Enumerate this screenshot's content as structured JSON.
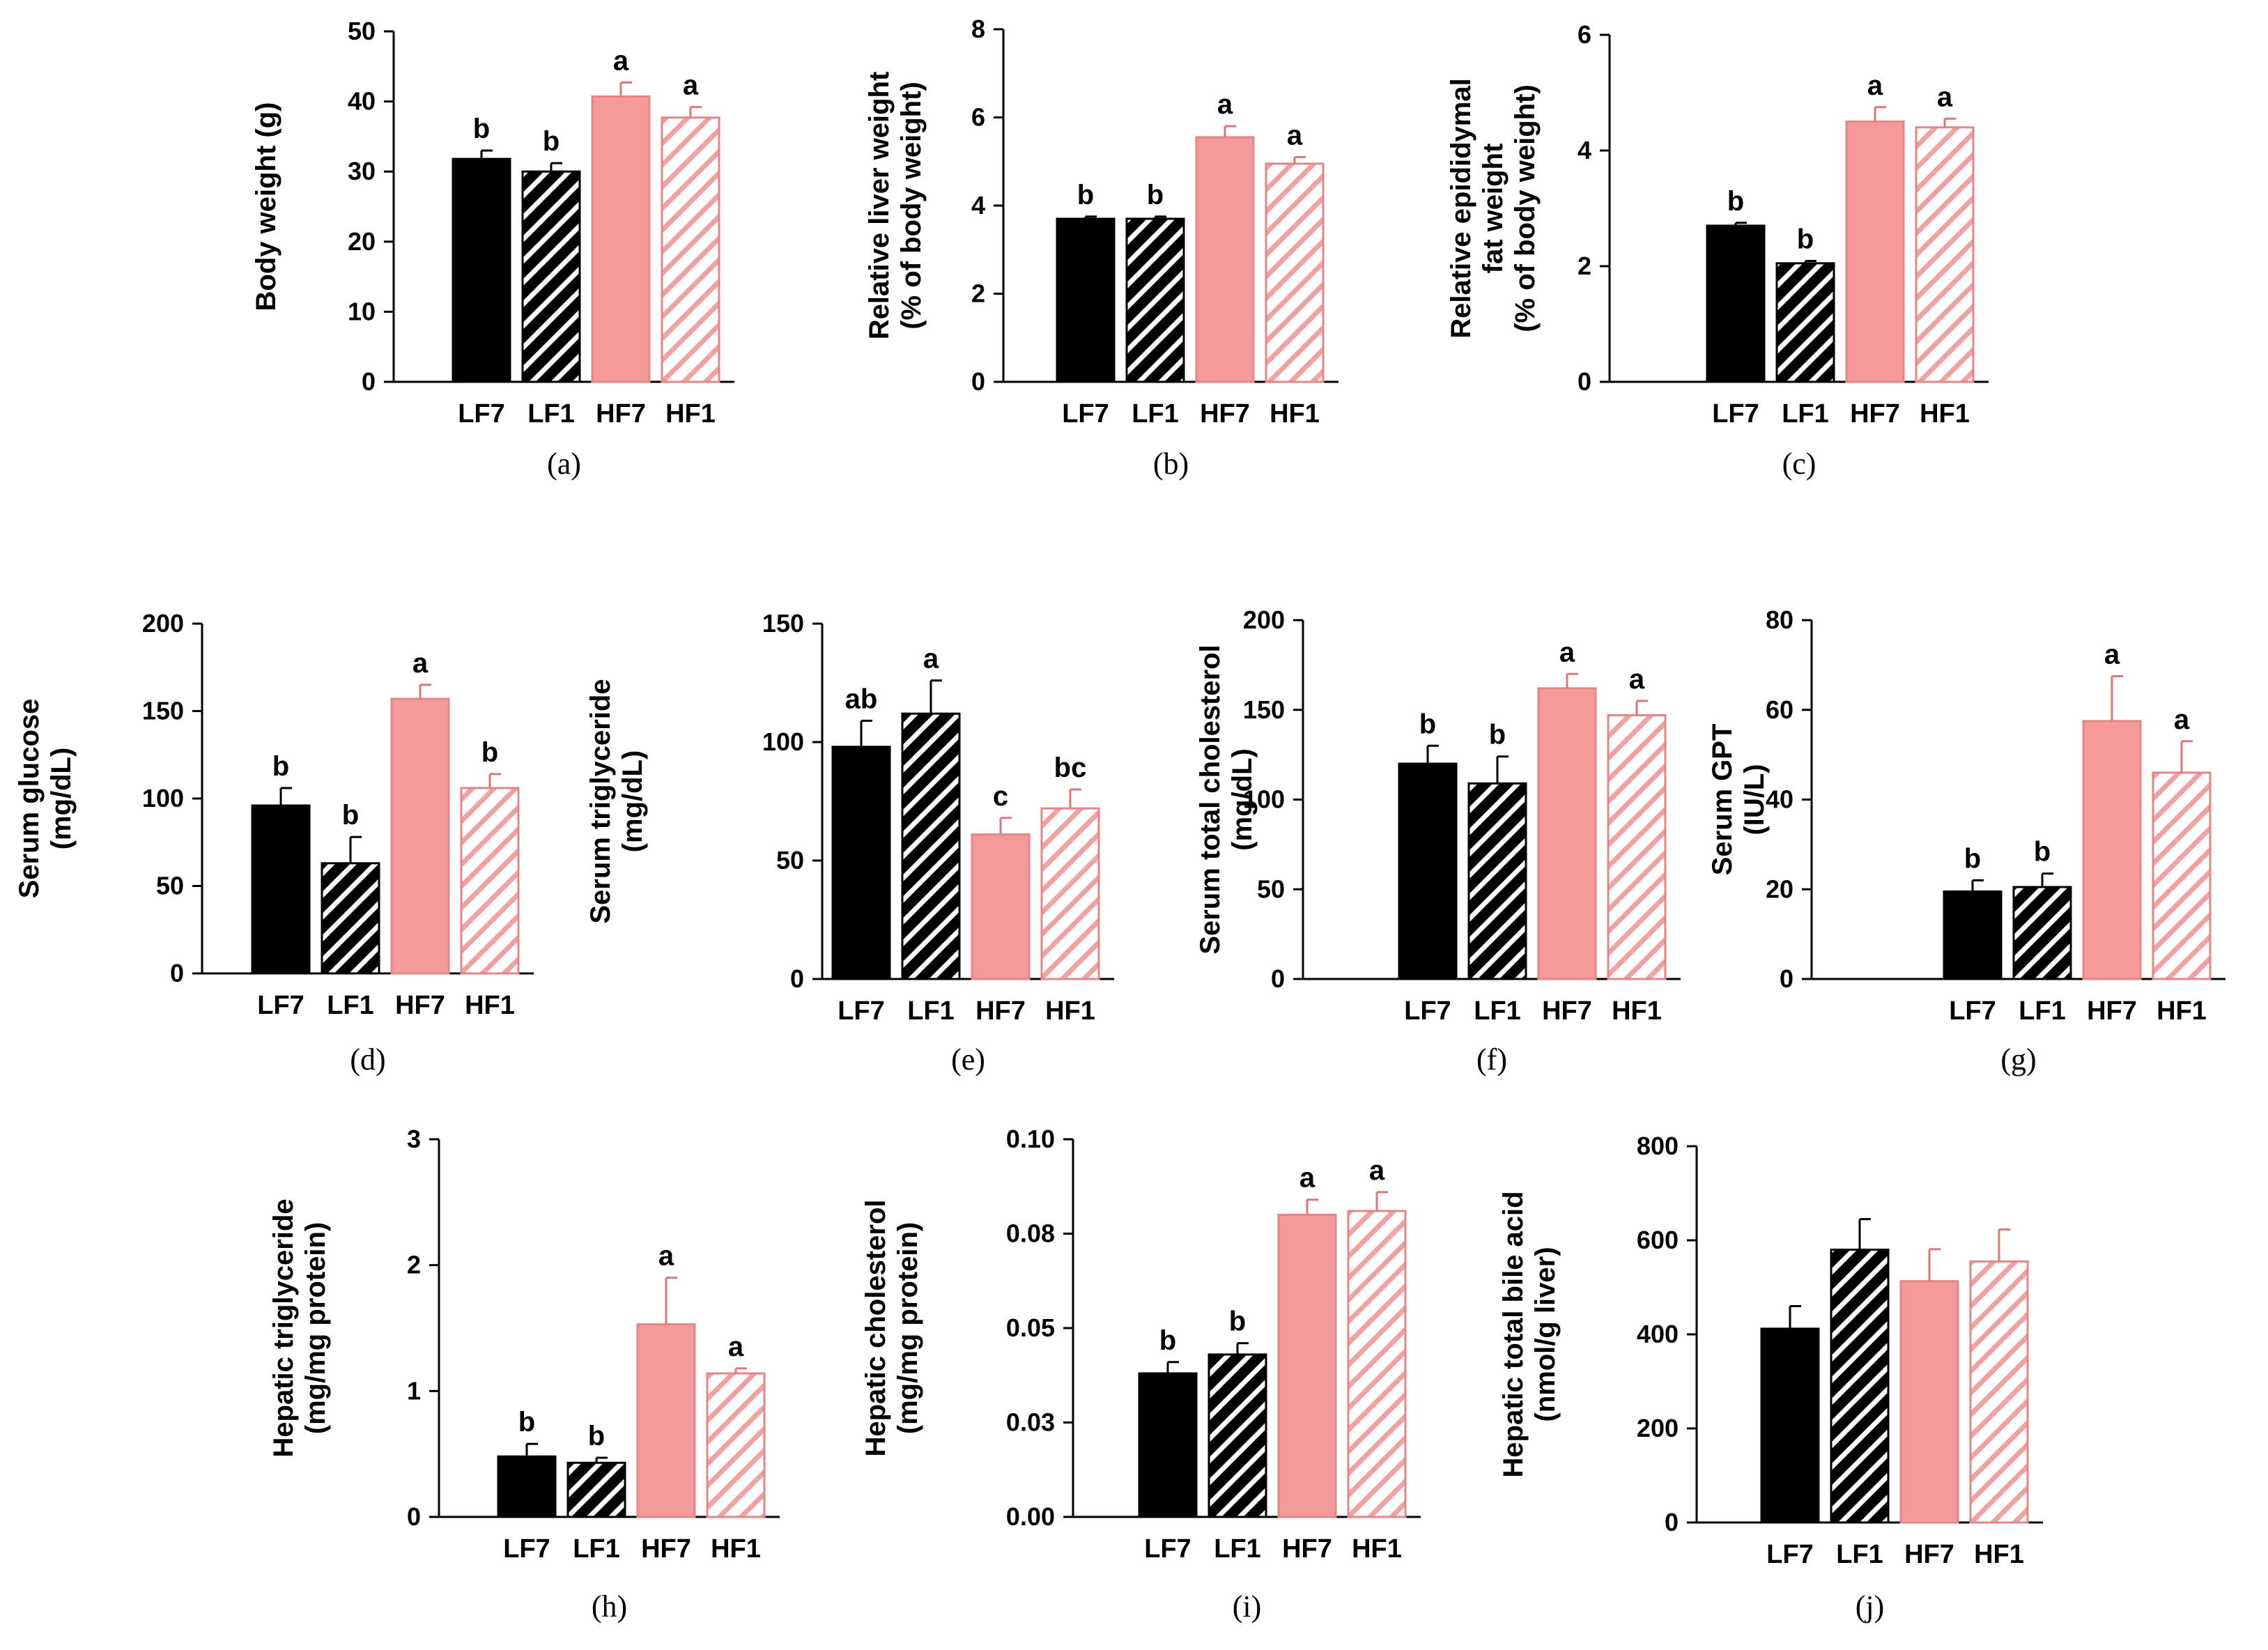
{
  "figure": {
    "bar_styles": [
      {
        "fill": "#000000",
        "pattern": "none"
      },
      {
        "fill": "#000000",
        "pattern": "hatch-white"
      },
      {
        "fill": "#f59a9a",
        "pattern": "none"
      },
      {
        "fill": "#f59a9a",
        "pattern": "hatch-pink"
      }
    ],
    "colors": {
      "low_fat": "#000000",
      "high_fat": "#f59a9a",
      "hatch_pink": "#f3a0a0"
    }
  },
  "chart_data": [
    {
      "id": "a",
      "panel_label": "(a)",
      "type": "bar",
      "categories": [
        "LF7",
        "LF1",
        "HF7",
        "HF1"
      ],
      "values": [
        31.8,
        30.0,
        40.7,
        37.7
      ],
      "errors": [
        1.2,
        1.2,
        2.0,
        1.5
      ],
      "significance": [
        "b",
        "b",
        "a",
        "a"
      ],
      "ylabel": [
        "Body weight (g)"
      ],
      "ylim": [
        0,
        50
      ],
      "yticks": [
        "0",
        "10",
        "20",
        "30",
        "40",
        "50"
      ]
    },
    {
      "id": "b",
      "panel_label": "(b)",
      "type": "bar",
      "categories": [
        "LF7",
        "LF1",
        "HF7",
        "HF1"
      ],
      "values": [
        3.7,
        3.7,
        5.55,
        4.95
      ],
      "errors": [
        0.05,
        0.05,
        0.25,
        0.15
      ],
      "significance": [
        "b",
        "b",
        "a",
        "a"
      ],
      "ylabel": [
        "Relative liver weight",
        "(% of body weight)"
      ],
      "ylim": [
        0,
        8
      ],
      "yticks": [
        "0",
        "2",
        "4",
        "6",
        "8"
      ]
    },
    {
      "id": "c",
      "panel_label": "(c)",
      "type": "bar",
      "categories": [
        "LF7",
        "LF1",
        "HF7",
        "HF1"
      ],
      "values": [
        2.7,
        2.05,
        4.5,
        4.4
      ],
      "errors": [
        0.05,
        0.04,
        0.25,
        0.15
      ],
      "significance": [
        "b",
        "b",
        "a",
        "a"
      ],
      "ylabel": [
        "Relative epididymal",
        "fat weight",
        "(% of body weight)"
      ],
      "ylim": [
        0,
        6
      ],
      "yticks": [
        "0",
        "2",
        "4",
        "6"
      ]
    },
    {
      "id": "d",
      "panel_label": "(d)",
      "type": "bar",
      "categories": [
        "LF7",
        "LF1",
        "HF7",
        "HF1"
      ],
      "values": [
        96,
        63,
        157,
        106
      ],
      "errors": [
        10,
        15,
        8,
        8
      ],
      "significance": [
        "b",
        "b",
        "a",
        "b"
      ],
      "ylabel": [
        "Serum glucose",
        "(mg/dL)"
      ],
      "ylim": [
        0,
        200
      ],
      "yticks": [
        "0",
        "50",
        "100",
        "150",
        "200"
      ]
    },
    {
      "id": "e",
      "panel_label": "(e)",
      "type": "bar",
      "categories": [
        "LF7",
        "LF1",
        "HF7",
        "HF1"
      ],
      "values": [
        98,
        112,
        61,
        72
      ],
      "errors": [
        11,
        14,
        7,
        8
      ],
      "significance": [
        "ab",
        "a",
        "c",
        "bc"
      ],
      "ylabel": [
        "Serum triglyceride",
        "(mg/dL)"
      ],
      "ylim": [
        0,
        150
      ],
      "yticks": [
        "0",
        "50",
        "100",
        "150"
      ]
    },
    {
      "id": "f",
      "panel_label": "(f)",
      "type": "bar",
      "categories": [
        "LF7",
        "LF1",
        "HF7",
        "HF1"
      ],
      "values": [
        120,
        109,
        162,
        147
      ],
      "errors": [
        10,
        15,
        8,
        8
      ],
      "significance": [
        "b",
        "b",
        "a",
        "a"
      ],
      "ylabel": [
        "Serum total cholesterol",
        "(mg/dL)"
      ],
      "ylim": [
        0,
        200
      ],
      "yticks": [
        "0",
        "50",
        "100",
        "150",
        "200"
      ]
    },
    {
      "id": "g",
      "panel_label": "(g)",
      "type": "bar",
      "categories": [
        "LF7",
        "LF1",
        "HF7",
        "HF1"
      ],
      "values": [
        19.5,
        20.5,
        57.5,
        46
      ],
      "errors": [
        2.5,
        3,
        10,
        7
      ],
      "significance": [
        "b",
        "b",
        "a",
        "a"
      ],
      "ylabel": [
        "Serum GPT",
        "(IU/L)"
      ],
      "ylim": [
        0,
        80
      ],
      "yticks": [
        "0",
        "20",
        "40",
        "60",
        "80"
      ]
    },
    {
      "id": "h",
      "panel_label": "(h)",
      "type": "bar",
      "categories": [
        "LF7",
        "LF1",
        "HF7",
        "HF1"
      ],
      "values": [
        0.48,
        0.43,
        1.53,
        1.14
      ],
      "errors": [
        0.1,
        0.04,
        0.37,
        0.04
      ],
      "significance": [
        "b",
        "b",
        "a",
        "a"
      ],
      "ylabel": [
        "Hepatic triglyceride",
        "(mg/mg protein)"
      ],
      "ylim": [
        0,
        3
      ],
      "yticks": [
        "0",
        "1",
        "2",
        "3"
      ]
    },
    {
      "id": "i",
      "panel_label": "(i)",
      "type": "bar",
      "categories": [
        "LF7",
        "LF1",
        "HF7",
        "HF1"
      ],
      "values": [
        0.038,
        0.043,
        0.08,
        0.081
      ],
      "errors": [
        0.003,
        0.003,
        0.004,
        0.005
      ],
      "significance": [
        "b",
        "b",
        "a",
        "a"
      ],
      "ylabel": [
        "Hepatic cholesterol",
        "(mg/mg protein)"
      ],
      "ylim": [
        0,
        0.1
      ],
      "yticks": [
        "0.00",
        "0.03",
        "0.05",
        "0.08",
        "0.10"
      ]
    },
    {
      "id": "j",
      "panel_label": "(j)",
      "type": "bar",
      "categories": [
        "LF7",
        "LF1",
        "HF7",
        "HF1"
      ],
      "values": [
        412,
        580,
        513,
        555
      ],
      "errors": [
        48,
        65,
        68,
        68
      ],
      "significance": [
        "",
        "",
        "",
        ""
      ],
      "ylabel": [
        "Hepatic total bile acid",
        "(nmol/g liver)"
      ],
      "ylim": [
        0,
        800
      ],
      "yticks": [
        "0",
        "200",
        "400",
        "600",
        "800"
      ]
    }
  ]
}
